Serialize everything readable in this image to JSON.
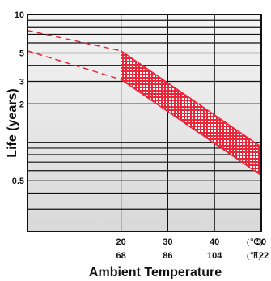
{
  "chart_data": {
    "type": "area",
    "title": "",
    "xlabel": "Ambient Temperature",
    "ylabel": "Life (years)",
    "y_scale": "log",
    "ylim": [
      0.2,
      10
    ],
    "xlim": [
      0,
      50
    ],
    "y_ticks": [
      {
        "value": 10,
        "label": "10"
      },
      {
        "value": 5,
        "label": "5"
      },
      {
        "value": 3,
        "label": "3"
      },
      {
        "value": 2,
        "label": "2"
      },
      {
        "value": 0.5,
        "label": "0.5"
      }
    ],
    "y_gridlines": [
      10,
      9,
      8,
      7,
      6,
      5,
      4,
      3,
      2,
      1,
      0.9,
      0.8,
      0.7,
      0.6,
      0.5,
      0.4,
      0.3,
      0.2
    ],
    "x_ticks_c": [
      {
        "value": 20,
        "label": "20"
      },
      {
        "value": 30,
        "label": "30"
      },
      {
        "value": 40,
        "label": "40"
      },
      {
        "value": 50,
        "label": "50"
      }
    ],
    "x_ticks_f": [
      {
        "value": 20,
        "label": "68"
      },
      {
        "value": 30,
        "label": "86"
      },
      {
        "value": 40,
        "label": "104"
      },
      {
        "value": 50,
        "label": "122"
      }
    ],
    "unit_c_label": "(℃)",
    "unit_f_label": "(℉)",
    "series": [
      {
        "x": [
          20,
          50
        ],
        "y": [
          5.2,
          0.92
        ],
        "style": "solid"
      },
      {
        "x": [
          20,
          50
        ],
        "y": [
          3.1,
          0.55
        ],
        "style": "solid"
      },
      {
        "x": [
          0,
          20
        ],
        "y": [
          7.5,
          5.2
        ],
        "style": "dashed"
      },
      {
        "x": [
          0,
          20
        ],
        "y": [
          5.2,
          3.1
        ],
        "style": "dashed"
      }
    ],
    "band": {
      "x": [
        20,
        50
      ],
      "upper": [
        5.2,
        0.92
      ],
      "lower": [
        3.1,
        0.55
      ]
    },
    "colors": {
      "line": "#e8283a",
      "band": "#e8283a",
      "band_dots": "#ffffff",
      "grid": "#111111",
      "bg_top": "#f4f4f4",
      "bg_bottom": "#d9d9d9"
    }
  }
}
